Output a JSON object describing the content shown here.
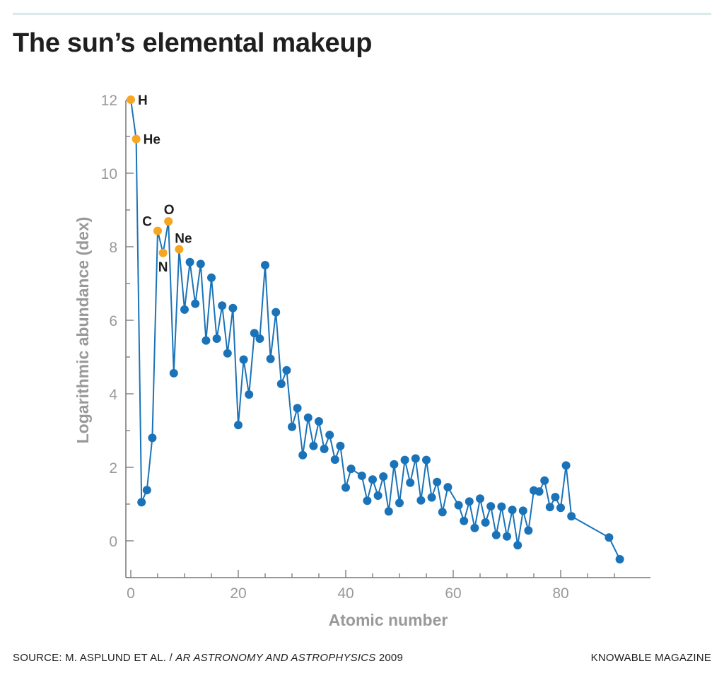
{
  "title": "The sun’s elemental makeup",
  "footer": {
    "source_prefix": "SOURCE: M. ASPLUND ET AL. / ",
    "source_italic": "AR ASTRONOMY AND ASTROPHYSICS",
    "source_year": " 2009",
    "credit": "KNOWABLE MAGAZINE"
  },
  "chart_data": {
    "type": "line",
    "title": "The sun’s elemental makeup",
    "xlabel": "Atomic number",
    "ylabel": "Logarithmic abundance (dex)",
    "xlim": [
      -1,
      96
    ],
    "ylim": [
      -1,
      12.3
    ],
    "xticks": [
      0,
      20,
      40,
      60,
      80
    ],
    "yticks": [
      0,
      2,
      4,
      6,
      8,
      10,
      12
    ],
    "grid": false,
    "colors": {
      "line": "#1a73b8",
      "highlight": "#f5a623",
      "axis": "#777777",
      "label": "#999999"
    },
    "series": [
      {
        "points": [
          [
            1,
            12.0
          ],
          [
            2,
            10.93
          ],
          [
            3,
            1.05
          ],
          [
            4,
            1.38
          ],
          [
            5,
            2.8
          ],
          [
            6,
            8.43
          ],
          [
            7,
            7.83
          ],
          [
            8,
            8.69
          ],
          [
            9,
            4.56
          ],
          [
            10,
            7.93
          ],
          [
            11,
            6.29
          ],
          [
            12,
            7.58
          ],
          [
            13,
            6.45
          ],
          [
            14,
            7.53
          ],
          [
            15,
            5.45
          ],
          [
            16,
            7.16
          ],
          [
            17,
            5.5
          ],
          [
            18,
            6.4
          ],
          [
            19,
            5.1
          ],
          [
            20,
            6.33
          ],
          [
            21,
            3.15
          ],
          [
            22,
            4.93
          ],
          [
            23,
            3.98
          ],
          [
            24,
            5.65
          ],
          [
            25,
            5.5
          ],
          [
            26,
            7.5
          ],
          [
            27,
            4.95
          ],
          [
            28,
            6.22
          ],
          [
            29,
            4.27
          ],
          [
            30,
            4.64
          ],
          [
            31,
            3.1
          ],
          [
            32,
            3.61
          ],
          [
            33,
            2.33
          ],
          [
            34,
            3.35
          ],
          [
            35,
            2.58
          ],
          [
            36,
            3.25
          ],
          [
            37,
            2.5
          ],
          [
            38,
            2.88
          ],
          [
            39,
            2.21
          ],
          [
            40,
            2.58
          ],
          [
            41,
            1.45
          ],
          [
            42,
            1.96
          ],
          [
            44,
            1.77
          ],
          [
            45,
            1.09
          ],
          [
            46,
            1.67
          ],
          [
            47,
            1.23
          ],
          [
            48,
            1.75
          ],
          [
            49,
            0.8
          ],
          [
            50,
            2.08
          ],
          [
            51,
            1.03
          ],
          [
            52,
            2.2
          ],
          [
            53,
            1.58
          ],
          [
            54,
            2.24
          ],
          [
            55,
            1.1
          ],
          [
            56,
            2.2
          ],
          [
            57,
            1.18
          ],
          [
            58,
            1.6
          ],
          [
            59,
            0.78
          ],
          [
            60,
            1.46
          ],
          [
            62,
            0.97
          ],
          [
            63,
            0.54
          ],
          [
            64,
            1.07
          ],
          [
            65,
            0.35
          ],
          [
            66,
            1.15
          ],
          [
            67,
            0.5
          ],
          [
            68,
            0.94
          ],
          [
            69,
            0.16
          ],
          [
            70,
            0.93
          ],
          [
            71,
            0.12
          ],
          [
            72,
            0.84
          ],
          [
            73,
            -0.12
          ],
          [
            74,
            0.82
          ],
          [
            75,
            0.28
          ],
          [
            76,
            1.37
          ],
          [
            77,
            1.34
          ],
          [
            78,
            1.64
          ],
          [
            79,
            0.92
          ],
          [
            80,
            1.19
          ],
          [
            81,
            0.9
          ],
          [
            82,
            2.05
          ],
          [
            83,
            0.67
          ],
          [
            90,
            0.09
          ],
          [
            92,
            -0.5
          ]
        ]
      }
    ],
    "highlighted": [
      {
        "label": "H",
        "x": 1,
        "y": 12.0,
        "label_position": "right"
      },
      {
        "label": "He",
        "x": 2,
        "y": 10.93,
        "label_position": "right"
      },
      {
        "label": "C",
        "x": 6,
        "y": 8.43,
        "label_position": "upper-left"
      },
      {
        "label": "N",
        "x": 7,
        "y": 7.83,
        "label_position": "below"
      },
      {
        "label": "O",
        "x": 8,
        "y": 8.69,
        "label_position": "above"
      },
      {
        "label": "Ne",
        "x": 10,
        "y": 7.93,
        "label_position": "upper-right"
      }
    ]
  }
}
